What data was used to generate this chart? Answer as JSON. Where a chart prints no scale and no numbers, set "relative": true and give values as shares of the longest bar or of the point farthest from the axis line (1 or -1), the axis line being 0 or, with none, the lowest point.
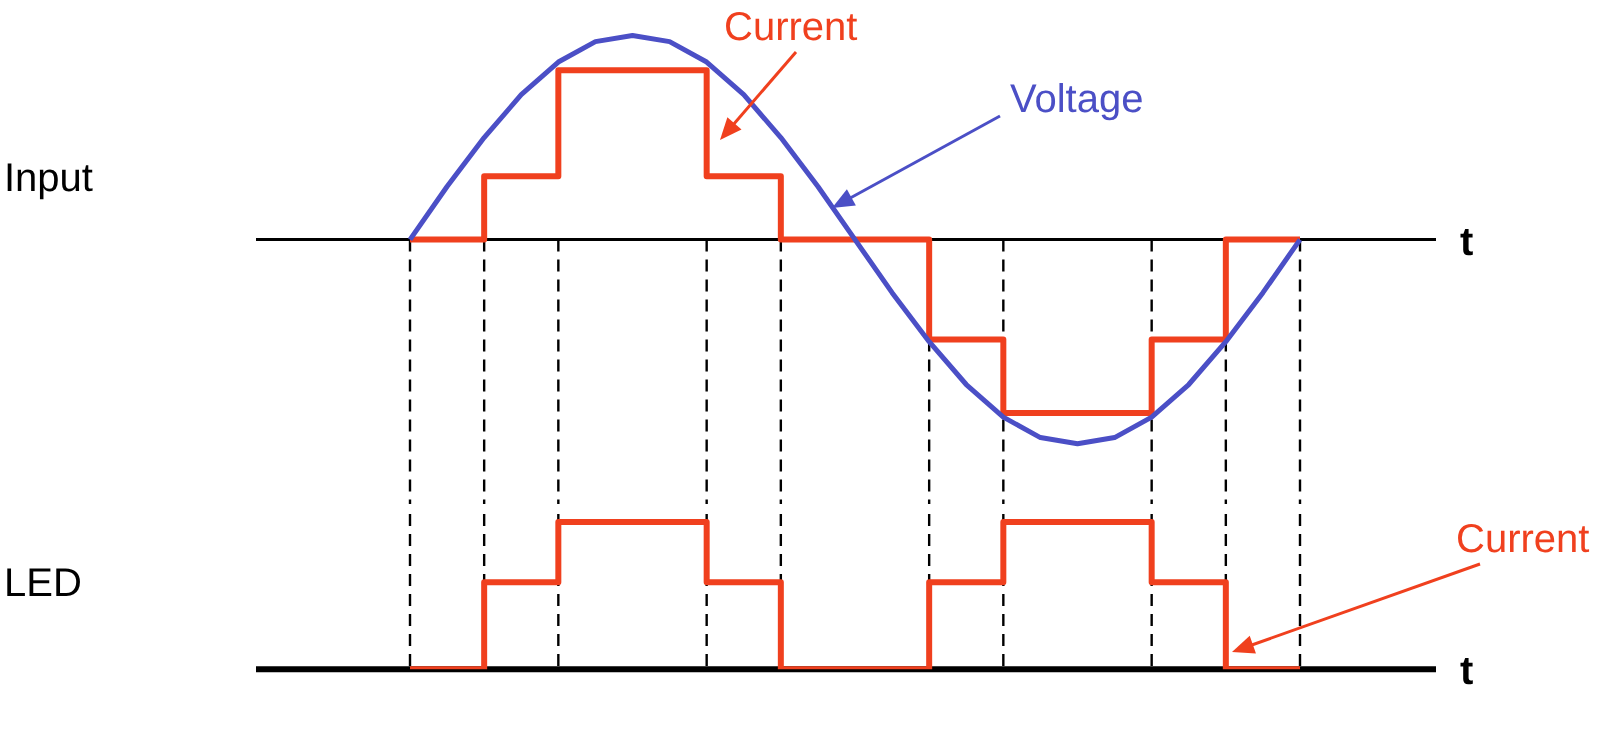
{
  "chart_data": [
    {
      "type": "line",
      "ylabel": "Input",
      "xlabel": "t",
      "relative": true,
      "legend": false,
      "marker": "none",
      "categories": [
        null,
        null,
        null,
        null,
        null,
        null,
        null,
        null,
        null,
        null,
        null,
        null,
        null,
        null,
        null,
        null,
        null,
        null,
        null,
        null,
        null,
        null,
        null,
        null,
        null
      ],
      "series": [
        {
          "name": "Current",
          "type": "step",
          "color": "#f0401e",
          "values": [
            0,
            0,
            0.31,
            0.31,
            0.83,
            0.83,
            0.83,
            0.83,
            0.31,
            0.31,
            0,
            0,
            0,
            0,
            -0.49,
            -0.49,
            -0.85,
            -0.85,
            -0.85,
            -0.85,
            -0.49,
            -0.49,
            0,
            0,
            0
          ]
        },
        {
          "name": "Voltage",
          "color": "#4b4fc6",
          "values": [
            0,
            0.26,
            0.5,
            0.71,
            0.87,
            0.97,
            1,
            0.97,
            0.87,
            0.71,
            0.5,
            0.26,
            0,
            -0.26,
            -0.5,
            -0.71,
            -0.87,
            -0.97,
            -1,
            -0.97,
            -0.87,
            -0.71,
            -0.5,
            -0.26,
            0
          ]
        }
      ]
    },
    {
      "type": "step",
      "ylabel": "LED",
      "xlabel": "t",
      "relative": true,
      "legend": false,
      "marker": "none",
      "grid": "x",
      "categories": [
        null,
        null,
        null,
        null,
        null,
        null,
        null,
        null,
        null,
        null,
        null,
        null,
        null,
        null,
        null,
        null,
        null,
        null,
        null,
        null,
        null,
        null,
        null,
        null,
        null
      ],
      "series": [
        {
          "name": "Current",
          "color": "#f0401e",
          "values": [
            0,
            0,
            0.59,
            0.59,
            1,
            1,
            1,
            1,
            0.59,
            0.59,
            0,
            0,
            0,
            0,
            0.59,
            0.59,
            1,
            1,
            1,
            1,
            0.59,
            0.59,
            0,
            0,
            0
          ]
        }
      ]
    }
  ]
}
